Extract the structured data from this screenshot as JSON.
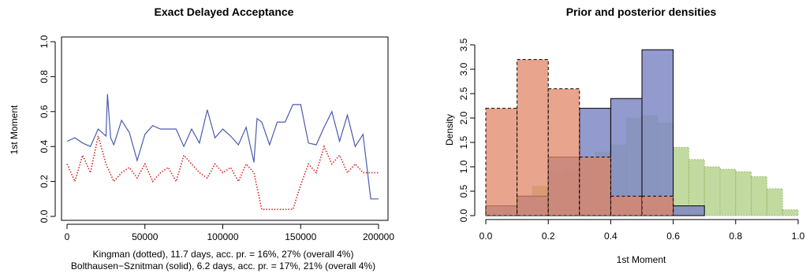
{
  "chart_data": [
    {
      "type": "line",
      "title": "Exact Delayed Acceptance",
      "ylabel": "1st Moment",
      "xlabel_lines": [
        "Kingman (dotted), 11.7 days, acc. pr. = 16%, 27% (overall 4%)",
        "Bolthausen−Sznitman (solid), 6.2 days, acc. pr. = 17%, 21% (overall 4%)"
      ],
      "xlim": [
        0,
        200000
      ],
      "ylim": [
        0,
        1
      ],
      "xticks": [
        "0",
        "50000",
        "100000",
        "150000",
        "200000"
      ],
      "yticks": [
        "0.0",
        "0.2",
        "0.4",
        "0.6",
        "0.8",
        "1.0"
      ],
      "series": [
        {
          "name": "Bolthausen−Sznitman (solid)",
          "color": "#4a5bae",
          "style": "solid",
          "x": [
            0,
            5000,
            10000,
            15000,
            20000,
            25000,
            26000,
            28000,
            30000,
            35000,
            40000,
            45000,
            50000,
            55000,
            60000,
            65000,
            70000,
            75000,
            80000,
            85000,
            90000,
            95000,
            100000,
            105000,
            110000,
            115000,
            120000,
            122000,
            125000,
            130000,
            135000,
            140000,
            145000,
            150000,
            155000,
            160000,
            165000,
            170000,
            175000,
            180000,
            185000,
            190000,
            195000,
            200000
          ],
          "y": [
            0.43,
            0.45,
            0.42,
            0.4,
            0.5,
            0.46,
            0.7,
            0.45,
            0.41,
            0.55,
            0.48,
            0.32,
            0.47,
            0.52,
            0.5,
            0.5,
            0.5,
            0.4,
            0.5,
            0.42,
            0.61,
            0.45,
            0.5,
            0.46,
            0.41,
            0.51,
            0.31,
            0.56,
            0.54,
            0.41,
            0.54,
            0.54,
            0.64,
            0.64,
            0.42,
            0.41,
            0.51,
            0.6,
            0.43,
            0.58,
            0.4,
            0.47,
            0.1,
            0.1
          ]
        },
        {
          "name": "Kingman (dotted)",
          "color": "#d62728",
          "style": "dotted",
          "x": [
            0,
            5000,
            10000,
            15000,
            20000,
            25000,
            30000,
            35000,
            40000,
            45000,
            50000,
            55000,
            60000,
            65000,
            70000,
            75000,
            80000,
            85000,
            90000,
            95000,
            100000,
            105000,
            110000,
            115000,
            120000,
            125000,
            130000,
            135000,
            140000,
            145000,
            150000,
            155000,
            160000,
            165000,
            170000,
            175000,
            180000,
            185000,
            190000,
            195000,
            200000
          ],
          "y": [
            0.3,
            0.2,
            0.35,
            0.25,
            0.46,
            0.3,
            0.2,
            0.25,
            0.28,
            0.22,
            0.3,
            0.2,
            0.25,
            0.28,
            0.2,
            0.35,
            0.3,
            0.25,
            0.22,
            0.3,
            0.25,
            0.28,
            0.2,
            0.3,
            0.25,
            0.04,
            0.04,
            0.04,
            0.04,
            0.04,
            0.18,
            0.3,
            0.25,
            0.4,
            0.3,
            0.35,
            0.25,
            0.3,
            0.25,
            0.25,
            0.25
          ]
        }
      ]
    },
    {
      "type": "bar",
      "title": "Prior and posterior densities",
      "xlabel": "1st Moment",
      "ylabel": "Density",
      "xlim": [
        0,
        1
      ],
      "ylim": [
        0,
        3.5
      ],
      "xticks": [
        "0.0",
        "0.2",
        "0.4",
        "0.6",
        "0.8",
        "1.0"
      ],
      "yticks": [
        "0.0",
        "0.5",
        "1.0",
        "1.5",
        "2.0",
        "2.5",
        "3.0",
        "3.5"
      ],
      "series": [
        {
          "name": "blue (solid border)",
          "color": "#8088c4",
          "bins": [
            0,
            0.1,
            0.2,
            0.3,
            0.4,
            0.5,
            0.6,
            0.7
          ],
          "density": [
            0.2,
            0.4,
            1.2,
            2.2,
            2.4,
            3.4,
            0.2
          ]
        },
        {
          "name": "orange (dashed border)",
          "color": "#e08565",
          "bins": [
            0,
            0.1,
            0.2,
            0.3,
            0.4,
            0.5,
            0.6
          ],
          "density": [
            2.2,
            3.2,
            2.6,
            1.2,
            0.4,
            0.4
          ]
        },
        {
          "name": "green (dotted border)",
          "color": "#b7d48f",
          "bins": [
            0,
            0.05,
            0.1,
            0.15,
            0.2,
            0.25,
            0.3,
            0.35,
            0.4,
            0.45,
            0.5,
            0.55,
            0.6,
            0.65,
            0.7,
            0.75,
            0.8,
            0.85,
            0.9,
            0.95,
            1.0
          ],
          "density": [
            0.1,
            0.2,
            0.4,
            0.6,
            0.9,
            0.95,
            1.2,
            1.3,
            1.45,
            2.0,
            2.05,
            1.9,
            1.4,
            1.15,
            1.0,
            0.95,
            0.9,
            0.8,
            0.55,
            0.12
          ]
        }
      ]
    }
  ]
}
